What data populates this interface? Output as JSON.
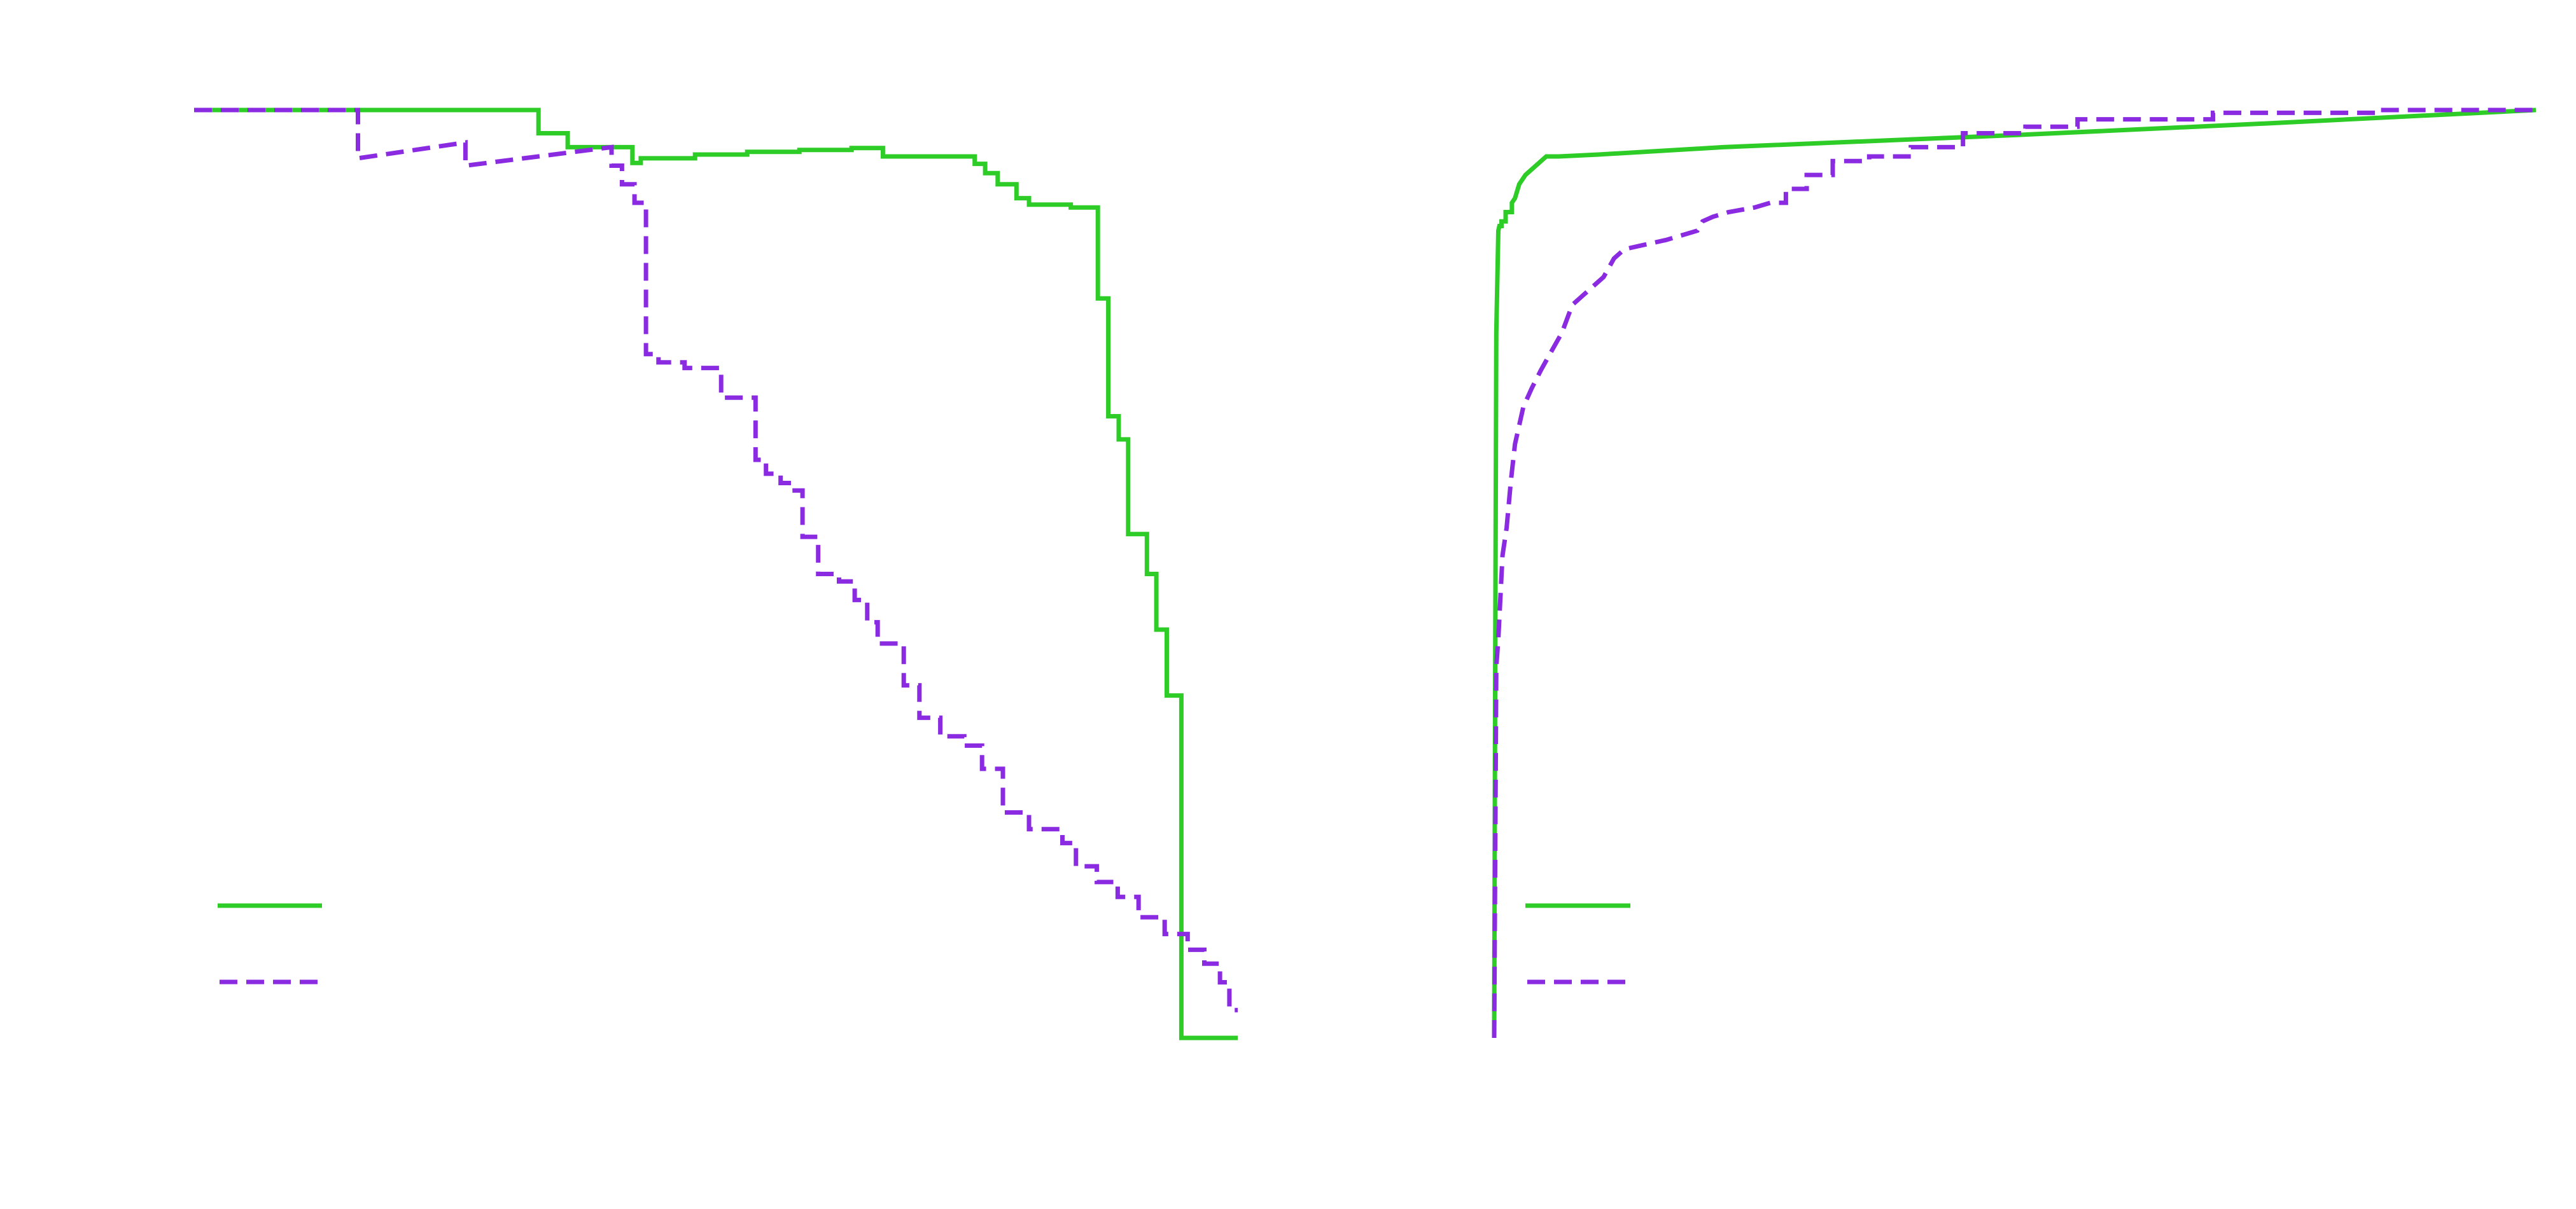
{
  "colors": {
    "green": "#2ecc27",
    "purple": "#8a2be2"
  },
  "chart_data": [
    {
      "type": "line",
      "step": true,
      "xlim": [
        0,
        1
      ],
      "ylim": [
        0,
        1
      ],
      "grid": false,
      "legend_placement": "bottom-left",
      "series": [
        {
          "style": "solid",
          "color": "#2ecc27",
          "points": [
            [
              0.0,
              1.0
            ],
            [
              0.33,
              1.0
            ],
            [
              0.33,
              0.975
            ],
            [
              0.358,
              0.975
            ],
            [
              0.358,
              0.96
            ],
            [
              0.42,
              0.96
            ],
            [
              0.42,
              0.943
            ],
            [
              0.428,
              0.943
            ],
            [
              0.428,
              0.948
            ],
            [
              0.48,
              0.948
            ],
            [
              0.48,
              0.952
            ],
            [
              0.53,
              0.952
            ],
            [
              0.53,
              0.955
            ],
            [
              0.58,
              0.955
            ],
            [
              0.58,
              0.957
            ],
            [
              0.63,
              0.957
            ],
            [
              0.63,
              0.959
            ],
            [
              0.66,
              0.959
            ],
            [
              0.66,
              0.95
            ],
            [
              0.748,
              0.95
            ],
            [
              0.748,
              0.942
            ],
            [
              0.758,
              0.942
            ],
            [
              0.758,
              0.932
            ],
            [
              0.77,
              0.932
            ],
            [
              0.77,
              0.92
            ],
            [
              0.788,
              0.92
            ],
            [
              0.788,
              0.905
            ],
            [
              0.8,
              0.905
            ],
            [
              0.8,
              0.898
            ],
            [
              0.84,
              0.898
            ],
            [
              0.84,
              0.895
            ],
            [
              0.866,
              0.895
            ],
            [
              0.866,
              0.797
            ],
            [
              0.876,
              0.797
            ],
            [
              0.876,
              0.67
            ],
            [
              0.886,
              0.67
            ],
            [
              0.886,
              0.645
            ],
            [
              0.895,
              0.645
            ],
            [
              0.895,
              0.543
            ],
            [
              0.913,
              0.543
            ],
            [
              0.913,
              0.5
            ],
            [
              0.922,
              0.5
            ],
            [
              0.922,
              0.44
            ],
            [
              0.932,
              0.44
            ],
            [
              0.932,
              0.369
            ],
            [
              0.946,
              0.369
            ],
            [
              0.946,
              0.0
            ],
            [
              1.0,
              0.0
            ]
          ]
        },
        {
          "style": "dashed",
          "color": "#8a2be2",
          "points": [
            [
              0.0,
              1.0
            ],
            [
              0.157,
              1.0
            ],
            [
              0.157,
              0.948
            ],
            [
              0.26,
              0.965
            ],
            [
              0.26,
              0.94
            ],
            [
              0.4,
              0.96
            ],
            [
              0.4,
              0.94
            ],
            [
              0.41,
              0.94
            ],
            [
              0.41,
              0.92
            ],
            [
              0.422,
              0.92
            ],
            [
              0.422,
              0.9
            ],
            [
              0.433,
              0.9
            ],
            [
              0.433,
              0.737
            ],
            [
              0.445,
              0.737
            ],
            [
              0.445,
              0.728
            ],
            [
              0.47,
              0.728
            ],
            [
              0.47,
              0.722
            ],
            [
              0.505,
              0.722
            ],
            [
              0.505,
              0.69
            ],
            [
              0.538,
              0.69
            ],
            [
              0.538,
              0.623
            ],
            [
              0.548,
              0.623
            ],
            [
              0.548,
              0.608
            ],
            [
              0.562,
              0.608
            ],
            [
              0.562,
              0.598
            ],
            [
              0.572,
              0.598
            ],
            [
              0.572,
              0.59
            ],
            [
              0.583,
              0.59
            ],
            [
              0.583,
              0.54
            ],
            [
              0.598,
              0.54
            ],
            [
              0.598,
              0.5
            ],
            [
              0.618,
              0.5
            ],
            [
              0.618,
              0.492
            ],
            [
              0.633,
              0.492
            ],
            [
              0.633,
              0.472
            ],
            [
              0.645,
              0.472
            ],
            [
              0.645,
              0.448
            ],
            [
              0.655,
              0.448
            ],
            [
              0.655,
              0.425
            ],
            [
              0.68,
              0.425
            ],
            [
              0.68,
              0.38
            ],
            [
              0.695,
              0.38
            ],
            [
              0.695,
              0.345
            ],
            [
              0.715,
              0.345
            ],
            [
              0.715,
              0.325
            ],
            [
              0.738,
              0.325
            ],
            [
              0.738,
              0.315
            ],
            [
              0.755,
              0.315
            ],
            [
              0.755,
              0.29
            ],
            [
              0.775,
              0.29
            ],
            [
              0.775,
              0.243
            ],
            [
              0.8,
              0.243
            ],
            [
              0.8,
              0.225
            ],
            [
              0.832,
              0.225
            ],
            [
              0.832,
              0.21
            ],
            [
              0.845,
              0.21
            ],
            [
              0.845,
              0.185
            ],
            [
              0.865,
              0.185
            ],
            [
              0.865,
              0.168
            ],
            [
              0.885,
              0.168
            ],
            [
              0.885,
              0.152
            ],
            [
              0.905,
              0.152
            ],
            [
              0.905,
              0.13
            ],
            [
              0.93,
              0.13
            ],
            [
              0.93,
              0.112
            ],
            [
              0.952,
              0.112
            ],
            [
              0.952,
              0.095
            ],
            [
              0.968,
              0.095
            ],
            [
              0.968,
              0.08
            ],
            [
              0.983,
              0.08
            ],
            [
              0.983,
              0.06
            ],
            [
              0.992,
              0.06
            ],
            [
              0.992,
              0.03
            ],
            [
              1.0,
              0.03
            ]
          ]
        }
      ]
    },
    {
      "type": "line",
      "xlim": [
        0,
        1
      ],
      "ylim": [
        0,
        1
      ],
      "grid": false,
      "legend_placement": "bottom-left",
      "series": [
        {
          "style": "solid",
          "color": "#2ecc27",
          "points": [
            [
              0.0,
              0.0
            ],
            [
              0.001,
              0.4
            ],
            [
              0.002,
              0.76
            ],
            [
              0.004,
              0.87
            ],
            [
              0.005,
              0.875
            ],
            [
              0.007,
              0.875
            ],
            [
              0.007,
              0.88
            ],
            [
              0.011,
              0.88
            ],
            [
              0.011,
              0.89
            ],
            [
              0.017,
              0.89
            ],
            [
              0.017,
              0.9
            ],
            [
              0.02,
              0.905
            ],
            [
              0.024,
              0.92
            ],
            [
              0.03,
              0.93
            ],
            [
              0.04,
              0.94
            ],
            [
              0.05,
              0.95
            ],
            [
              0.062,
              0.95
            ],
            [
              0.1,
              0.952
            ],
            [
              0.22,
              0.96
            ],
            [
              0.5,
              0.973
            ],
            [
              0.75,
              0.986
            ],
            [
              1.0,
              1.0
            ]
          ]
        },
        {
          "style": "dashed",
          "color": "#8a2be2",
          "points": [
            [
              0.0,
              0.0
            ],
            [
              0.002,
              0.4
            ],
            [
              0.004,
              0.43
            ],
            [
              0.008,
              0.52
            ],
            [
              0.012,
              0.55
            ],
            [
              0.016,
              0.6
            ],
            [
              0.02,
              0.64
            ],
            [
              0.028,
              0.68
            ],
            [
              0.036,
              0.7
            ],
            [
              0.045,
              0.72
            ],
            [
              0.055,
              0.74
            ],
            [
              0.065,
              0.76
            ],
            [
              0.075,
              0.79
            ],
            [
              0.085,
              0.8
            ],
            [
              0.095,
              0.81
            ],
            [
              0.105,
              0.82
            ],
            [
              0.115,
              0.84
            ],
            [
              0.125,
              0.85
            ],
            [
              0.145,
              0.855
            ],
            [
              0.165,
              0.86
            ],
            [
              0.18,
              0.865
            ],
            [
              0.195,
              0.87
            ],
            [
              0.2,
              0.88
            ],
            [
              0.21,
              0.885
            ],
            [
              0.225,
              0.89
            ],
            [
              0.25,
              0.895
            ],
            [
              0.265,
              0.9
            ],
            [
              0.28,
              0.9
            ],
            [
              0.28,
              0.915
            ],
            [
              0.3,
              0.915
            ],
            [
              0.3,
              0.93
            ],
            [
              0.325,
              0.93
            ],
            [
              0.325,
              0.945
            ],
            [
              0.36,
              0.945
            ],
            [
              0.36,
              0.95
            ],
            [
              0.4,
              0.95
            ],
            [
              0.4,
              0.96
            ],
            [
              0.45,
              0.96
            ],
            [
              0.45,
              0.975
            ],
            [
              0.51,
              0.975
            ],
            [
              0.51,
              0.982
            ],
            [
              0.56,
              0.982
            ],
            [
              0.56,
              0.99
            ],
            [
              0.69,
              0.99
            ],
            [
              0.69,
              0.997
            ],
            [
              0.85,
              0.997
            ],
            [
              0.85,
              1.0
            ],
            [
              1.0,
              1.0
            ]
          ]
        }
      ]
    }
  ]
}
